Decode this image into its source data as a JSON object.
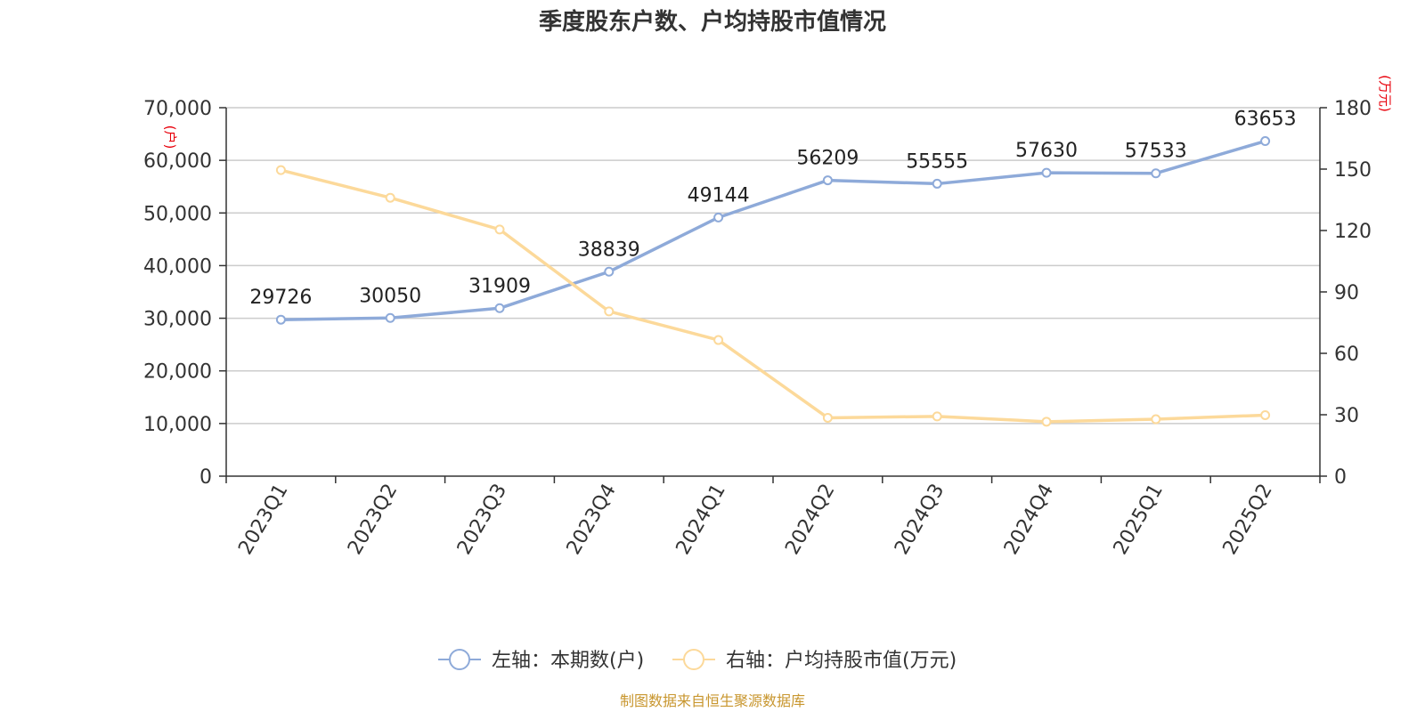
{
  "chart_data": {
    "type": "line",
    "title": "季度股东户数、户均持股市值情况",
    "categories": [
      "2023Q1",
      "2023Q2",
      "2023Q3",
      "2023Q4",
      "2024Q1",
      "2024Q2",
      "2024Q3",
      "2024Q4",
      "2025Q1",
      "2025Q2"
    ],
    "series": [
      {
        "name": "左轴：本期数(户)",
        "axis": "left",
        "color": "#8eaad9",
        "values": [
          29726,
          30050,
          31909,
          38839,
          49144,
          56209,
          55555,
          57630,
          57533,
          63653
        ],
        "show_labels": true
      },
      {
        "name": "右轴：户均持股市值(万元)",
        "axis": "right",
        "color": "#fcd99a",
        "values": [
          149.5,
          136,
          120.5,
          80.5,
          66.5,
          28.5,
          29.2,
          26.6,
          27.8,
          29.8
        ],
        "show_labels": false
      }
    ],
    "left_axis": {
      "unit": "(户)",
      "ylim": [
        0,
        70000
      ],
      "ticks": [
        0,
        10000,
        20000,
        30000,
        40000,
        50000,
        60000,
        70000
      ],
      "tick_labels": [
        "0",
        "10,000",
        "20,000",
        "30,000",
        "40,000",
        "50,000",
        "60,000",
        "70,000"
      ]
    },
    "right_axis": {
      "unit": "(万元)",
      "ylim": [
        0,
        180
      ],
      "ticks": [
        0,
        30,
        60,
        90,
        120,
        150,
        180
      ],
      "tick_labels": [
        "0",
        "30",
        "60",
        "90",
        "120",
        "150",
        "180"
      ]
    },
    "grid": true,
    "legend_position": "bottom-center",
    "source": "制图数据来自恒生聚源数据库"
  }
}
